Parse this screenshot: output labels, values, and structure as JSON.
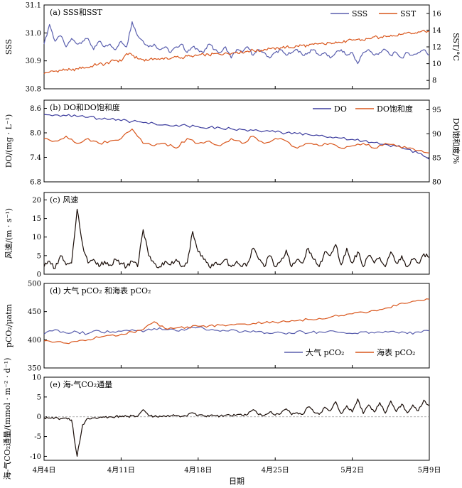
{
  "chart_data": {
    "type": "line",
    "x_label": "日期",
    "x_ticks": [
      "4月4日",
      "4月11日",
      "4月18日",
      "4月25日",
      "5月2日",
      "5月9日"
    ],
    "panels": [
      {
        "label": "(a) SSS和SST",
        "ylabel": "SSS",
        "y2label": "SST/°C",
        "ylim": [
          30.8,
          31.1
        ],
        "y2lim": [
          7,
          17
        ],
        "yticks": [
          "31.1",
          "31.0",
          "30.9",
          "30.8"
        ],
        "y2ticks": [
          "16",
          "14",
          "12",
          "10",
          "8"
        ],
        "legend": [
          "SSS",
          "SST"
        ],
        "series": [
          {
            "name": "SSS",
            "color": "#5a5fae",
            "axis": "left",
            "x": [
              0,
              0.5,
              1,
              1.5,
              2,
              2.5,
              3,
              3.5,
              4,
              4.5,
              5,
              5.5,
              6,
              6.5,
              7,
              7.5,
              8,
              8.5,
              9,
              9.5,
              10,
              10.5,
              11,
              11.5,
              12,
              12.5,
              13,
              13.5,
              14,
              14.5,
              15,
              15.5,
              16,
              16.5,
              17,
              17.5,
              18,
              18.5,
              19,
              19.5,
              20,
              20.5,
              21,
              21.5,
              22,
              22.5,
              23,
              23.5,
              24,
              24.5,
              25,
              25.5,
              26,
              26.5,
              27,
              27.5,
              28,
              28.5,
              29,
              29.5,
              30,
              30.5,
              31,
              31.5,
              32,
              32.5,
              33,
              33.5,
              34,
              34.5,
              35
            ],
            "y": [
              30.96,
              31.03,
              30.97,
              30.99,
              30.95,
              30.98,
              30.96,
              30.97,
              30.98,
              30.94,
              30.97,
              30.95,
              30.96,
              30.94,
              30.97,
              30.95,
              31.04,
              30.99,
              30.97,
              30.95,
              30.96,
              30.94,
              30.95,
              30.93,
              30.95,
              30.96,
              30.93,
              30.95,
              30.94,
              30.93,
              30.96,
              30.94,
              30.93,
              30.95,
              30.91,
              30.94,
              30.93,
              30.95,
              30.92,
              30.94,
              30.93,
              30.91,
              30.93,
              30.94,
              30.92,
              30.93,
              30.94,
              30.92,
              30.93,
              30.94,
              30.92,
              30.93,
              30.91,
              30.93,
              30.94,
              30.92,
              30.93,
              30.89,
              30.93,
              30.94,
              30.92,
              30.93,
              30.94,
              30.92,
              30.93,
              30.91,
              30.93,
              30.92,
              30.93,
              30.94,
              30.92
            ]
          },
          {
            "name": "SST",
            "color": "#d9561c",
            "axis": "right",
            "x": [
              0,
              0.5,
              1,
              1.5,
              2,
              2.5,
              3,
              3.5,
              4,
              4.5,
              5,
              5.5,
              6,
              6.5,
              7,
              7.5,
              8,
              8.5,
              9,
              9.5,
              10,
              10.5,
              11,
              11.5,
              12,
              12.5,
              13,
              13.5,
              14,
              14.5,
              15,
              15.5,
              16,
              16.5,
              17,
              17.5,
              18,
              18.5,
              19,
              19.5,
              20,
              20.5,
              21,
              21.5,
              22,
              22.5,
              23,
              23.5,
              24,
              24.5,
              25,
              25.5,
              26,
              26.5,
              27,
              27.5,
              28,
              28.5,
              29,
              29.5,
              30,
              30.5,
              31,
              31.5,
              32,
              32.5,
              33,
              33.5,
              34,
              34.5,
              35
            ],
            "y": [
              8.8,
              9.0,
              9.1,
              9.2,
              9.3,
              9.2,
              9.4,
              9.6,
              9.5,
              9.8,
              10.0,
              9.9,
              10.2,
              10.4,
              10.3,
              11.2,
              11.0,
              10.6,
              10.5,
              10.4,
              10.6,
              10.5,
              10.7,
              10.6,
              10.8,
              10.7,
              10.9,
              10.8,
              11.0,
              11.1,
              11.0,
              11.2,
              11.1,
              11.3,
              11.2,
              11.4,
              11.3,
              11.5,
              11.6,
              11.5,
              11.7,
              11.8,
              11.7,
              11.9,
              12.0,
              11.9,
              12.1,
              12.2,
              12.1,
              12.3,
              12.4,
              12.3,
              12.5,
              12.6,
              12.5,
              12.7,
              12.8,
              12.9,
              12.8,
              13.0,
              13.2,
              13.1,
              13.3,
              13.4,
              13.3,
              13.5,
              13.7,
              13.6,
              13.8,
              14.0,
              13.8
            ]
          }
        ]
      },
      {
        "label": "(b) DO和DO饱和度",
        "ylabel": "DO/(mg · L⁻¹)",
        "y2label": "DO饱和度/%",
        "ylim": [
          6.8,
          8.8
        ],
        "y2lim": [
          80,
          97
        ],
        "yticks": [
          "8.6",
          "8.0",
          "7.4",
          "6.8"
        ],
        "y2ticks": [
          "95",
          "90",
          "85",
          "80"
        ],
        "legend": [
          "DO",
          "DO饱和度"
        ],
        "series": [
          {
            "name": "DO",
            "color": "#3d3d9e",
            "axis": "left",
            "x": [
              0,
              1,
              2,
              3,
              4,
              5,
              6,
              7,
              8,
              9,
              10,
              11,
              12,
              13,
              14,
              15,
              16,
              17,
              18,
              19,
              20,
              21,
              22,
              23,
              24,
              25,
              26,
              27,
              28,
              29,
              30,
              31,
              32,
              33,
              34,
              35
            ],
            "y": [
              8.45,
              8.44,
              8.42,
              8.4,
              8.38,
              8.35,
              8.33,
              8.3,
              8.28,
              8.25,
              8.23,
              8.2,
              8.19,
              8.17,
              8.15,
              8.13,
              8.12,
              8.1,
              8.08,
              8.06,
              8.04,
              8.02,
              8.0,
              7.98,
              7.96,
              7.93,
              7.9,
              7.87,
              7.84,
              7.8,
              7.76,
              7.72,
              7.67,
              7.6,
              7.5,
              7.35
            ]
          },
          {
            "name": "DO饱和度",
            "color": "#d9561c",
            "axis": "right",
            "x": [
              0,
              1,
              2,
              3,
              4,
              5,
              6,
              7,
              8,
              9,
              10,
              11,
              12,
              13,
              14,
              15,
              16,
              17,
              18,
              19,
              20,
              21,
              22,
              23,
              24,
              25,
              26,
              27,
              28,
              29,
              30,
              31,
              32,
              33,
              34,
              35
            ],
            "y": [
              89.0,
              88.5,
              89.5,
              88.0,
              89.0,
              88.0,
              88.5,
              89.0,
              91.0,
              88.0,
              87.5,
              88.0,
              87.0,
              89.0,
              88.0,
              88.5,
              87.5,
              89.0,
              88.0,
              89.5,
              88.0,
              89.0,
              88.5,
              87.0,
              88.0,
              87.5,
              88.0,
              87.0,
              87.5,
              88.0,
              87.0,
              88.0,
              87.5,
              87.0,
              86.5,
              86.0
            ]
          }
        ]
      },
      {
        "label": "(c) 风速",
        "ylabel": "风速/(m · s⁻¹)",
        "ylim": [
          0,
          22
        ],
        "yticks": [
          "20",
          "15",
          "10",
          "5",
          "0"
        ],
        "series": [
          {
            "name": "",
            "color": "#1a0d08",
            "axis": "left",
            "x": [
              0,
              0.5,
              1,
              1.5,
              2,
              2.5,
              3,
              3.5,
              4,
              4.5,
              5,
              5.5,
              6,
              6.5,
              7,
              7.5,
              8,
              8.5,
              9,
              9.5,
              10,
              10.5,
              11,
              11.5,
              12,
              12.5,
              13,
              13.5,
              14,
              14.5,
              15,
              15.5,
              16,
              16.5,
              17,
              17.5,
              18,
              18.5,
              19,
              19.5,
              20,
              20.5,
              21,
              21.5,
              22,
              22.5,
              23,
              23.5,
              24,
              24.5,
              25,
              25.5,
              26,
              26.5,
              27,
              27.5,
              28,
              28.5,
              29,
              29.5,
              30,
              30.5,
              31,
              31.5,
              32,
              32.5,
              33,
              33.5,
              34,
              34.5,
              35
            ],
            "y": [
              2.0,
              3.5,
              1.5,
              5.0,
              2.5,
              3.0,
              17.5,
              8.0,
              3.0,
              4.0,
              2.0,
              3.5,
              2.5,
              4.0,
              3.0,
              2.0,
              3.5,
              2.0,
              12.0,
              5.0,
              3.0,
              2.0,
              3.5,
              2.5,
              4.0,
              2.0,
              3.0,
              11.5,
              6.0,
              4.0,
              2.0,
              3.0,
              2.5,
              4.0,
              2.0,
              3.5,
              2.0,
              3.0,
              7.0,
              4.0,
              2.0,
              5.0,
              2.0,
              3.5,
              6.5,
              2.0,
              4.0,
              3.0,
              7.0,
              4.0,
              2.0,
              6.0,
              5.0,
              8.0,
              2.5,
              7.0,
              3.0,
              6.0,
              2.0,
              5.0,
              3.0,
              4.5,
              2.0,
              6.0,
              3.0,
              5.0,
              2.0,
              4.0,
              3.0,
              5.5,
              4.5
            ]
          }
        ]
      },
      {
        "label": "(d) 大气 pCO₂ 和海表 pCO₂",
        "ylabel": "pCO₂/μatm",
        "ylim": [
          350,
          500
        ],
        "yticks": [
          "500",
          "450",
          "400",
          "350"
        ],
        "legend": [
          "大气 pCO₂",
          "海表 pCO₂"
        ],
        "series": [
          {
            "name": "大气 pCO₂",
            "color": "#5a5fae",
            "axis": "left",
            "x": [
              0,
              1,
              2,
              3,
              4,
              5,
              6,
              7,
              8,
              9,
              10,
              11,
              12,
              13,
              14,
              15,
              16,
              17,
              18,
              19,
              20,
              21,
              22,
              23,
              24,
              25,
              26,
              27,
              28,
              29,
              30,
              31,
              32,
              33,
              34,
              35
            ],
            "y": [
              410,
              418,
              412,
              414,
              411,
              416,
              413,
              415,
              418,
              414,
              420,
              418,
              416,
              419,
              422,
              417,
              415,
              418,
              414,
              416,
              411,
              413,
              410,
              415,
              412,
              414,
              416,
              413,
              411,
              414,
              412,
              415,
              413,
              411,
              414,
              416
            ]
          },
          {
            "name": "海表 pCO₂",
            "color": "#d9561c",
            "axis": "left",
            "x": [
              0,
              1,
              2,
              3,
              4,
              5,
              6,
              7,
              8,
              9,
              10,
              11,
              12,
              13,
              14,
              15,
              16,
              17,
              18,
              19,
              20,
              21,
              22,
              23,
              24,
              25,
              26,
              27,
              28,
              29,
              30,
              31,
              32,
              33,
              34,
              35
            ],
            "y": [
              398,
              396,
              394,
              397,
              400,
              404,
              408,
              410,
              414,
              418,
              432,
              420,
              421,
              423,
              424,
              425,
              426,
              427,
              428,
              429,
              430,
              431,
              432,
              434,
              436,
              438,
              440,
              443,
              446,
              449,
              452,
              456,
              460,
              465,
              470,
              472
            ]
          }
        ]
      },
      {
        "label": "(e) 海-气CO₂通量",
        "ylabel": "海-气CO₂通量/(mmol · m⁻² · d⁻¹)",
        "ylim": [
          -11,
          10
        ],
        "yticks": [
          "10",
          "5",
          "0",
          "-5",
          "-10"
        ],
        "series": [
          {
            "name": "",
            "color": "#1a0d08",
            "axis": "left",
            "x": [
              0,
              0.5,
              1,
              1.5,
              2,
              2.5,
              3,
              3.5,
              4,
              4.5,
              5,
              5.5,
              6,
              6.5,
              7,
              7.5,
              8,
              8.5,
              9,
              9.5,
              10,
              10.5,
              11,
              11.5,
              12,
              12.5,
              13,
              13.5,
              14,
              14.5,
              15,
              15.5,
              16,
              16.5,
              17,
              17.5,
              18,
              18.5,
              19,
              19.5,
              20,
              20.5,
              21,
              21.5,
              22,
              22.5,
              23,
              23.5,
              24,
              24.5,
              25,
              25.5,
              26,
              26.5,
              27,
              27.5,
              28,
              28.5,
              29,
              29.5,
              30,
              30.5,
              31,
              31.5,
              32,
              32.5,
              33,
              33.5,
              34,
              34.5,
              35
            ],
            "y": [
              -0.2,
              -0.3,
              -0.2,
              -0.5,
              -0.3,
              -0.8,
              -10.0,
              -2.0,
              -0.4,
              -0.3,
              -0.2,
              -0.1,
              0.0,
              0.1,
              0.0,
              0.1,
              0.2,
              0.1,
              1.8,
              0.3,
              0.1,
              0.2,
              0.1,
              0.2,
              0.3,
              0.1,
              0.2,
              1.0,
              0.4,
              0.2,
              0.1,
              0.3,
              0.2,
              0.4,
              0.2,
              0.5,
              0.3,
              0.6,
              1.8,
              0.5,
              0.3,
              1.2,
              0.4,
              0.8,
              2.0,
              0.5,
              1.0,
              0.6,
              2.5,
              1.2,
              0.6,
              2.4,
              1.5,
              3.8,
              0.8,
              2.8,
              1.2,
              4.5,
              0.8,
              3.0,
              1.2,
              3.6,
              0.9,
              4.0,
              1.3,
              3.2,
              1.0,
              3.0,
              1.5,
              4.2,
              2.8
            ]
          }
        ]
      }
    ]
  }
}
